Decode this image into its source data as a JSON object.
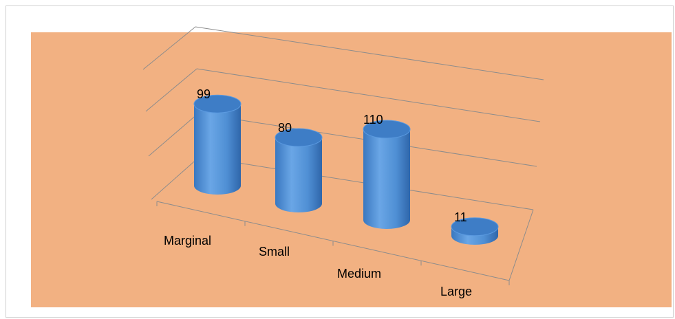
{
  "chart_data": {
    "type": "bar",
    "style": "3d-cylinder",
    "categories": [
      "Marginal",
      "Small",
      "Medium",
      "Large"
    ],
    "values": [
      99,
      80,
      110,
      11
    ],
    "data_labels": [
      "99",
      "80",
      "110",
      "11"
    ],
    "title": "",
    "xlabel": "",
    "ylabel": "",
    "ylim": [
      0,
      120
    ],
    "grid": true,
    "legend": "none",
    "colors": {
      "bar": "#4f8fd4",
      "bar_top": "#3e7dc6",
      "plot_background": "#f2b182",
      "gridline": "#8c8c8c"
    }
  }
}
